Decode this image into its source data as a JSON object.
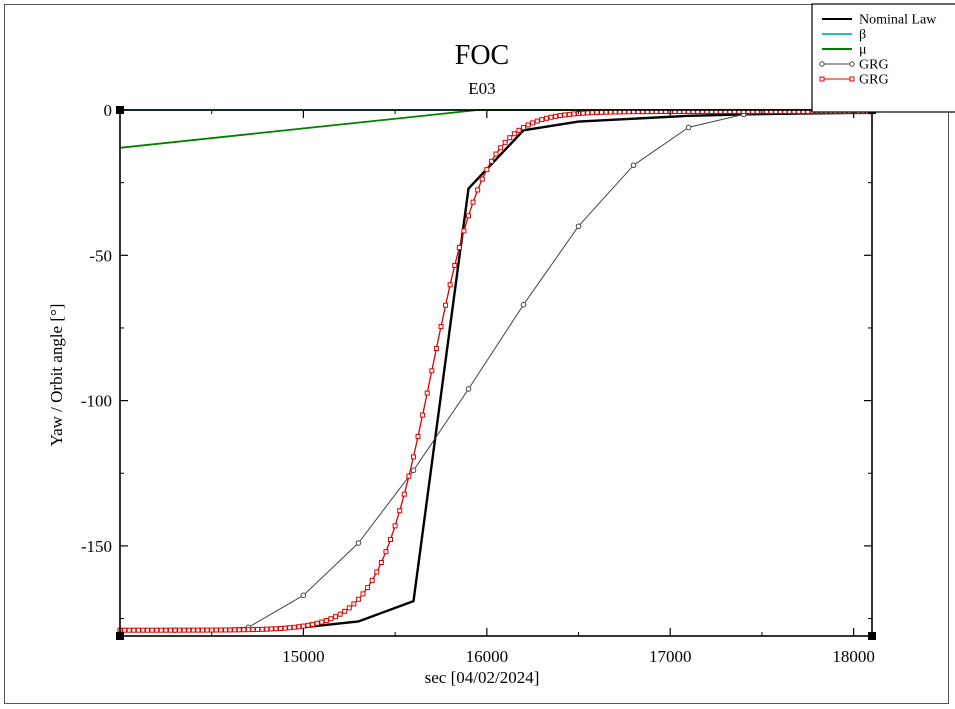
{
  "chart_data": {
    "type": "line",
    "title": "FOC",
    "subtitle": "E03",
    "xlabel": "sec [04/02/2024]",
    "ylabel": "Yaw / Orbit angle [°]",
    "xlim": [
      14000,
      18100
    ],
    "ylim": [
      -181,
      0
    ],
    "xticks": [
      15000,
      16000,
      17000,
      18000
    ],
    "yticks": [
      0,
      -50,
      -100,
      -150
    ],
    "grid": false,
    "legend_position": "top-right",
    "series": [
      {
        "name": "Nominal Law",
        "color": "#000000",
        "marker": "none",
        "x": [
          14000,
          14500,
          15000,
          15300,
          15600,
          15900,
          16200,
          16500,
          16800,
          17100,
          17400,
          17700,
          18000,
          18100
        ],
        "y": [
          -179,
          -179,
          -178,
          -176,
          -169,
          -27,
          -7,
          -4,
          -3,
          -2,
          -1.5,
          -1.2,
          -1,
          -1
        ]
      },
      {
        "name": "β",
        "color": "#20c0c0",
        "marker": "none",
        "x": [
          14000,
          18100
        ],
        "y": [
          0,
          0
        ]
      },
      {
        "name": "μ",
        "color": "#008000",
        "marker": "none",
        "x": [
          14000,
          15950,
          18100
        ],
        "y": [
          -13,
          0,
          0
        ]
      },
      {
        "name": "GRG",
        "color": "#444444",
        "marker": "circle",
        "x": [
          14000,
          14300,
          14700,
          15000,
          15300,
          15600,
          15900,
          16200,
          16500,
          16800,
          17100,
          17400,
          17700,
          18000,
          18100
        ],
        "y": [
          -179,
          -179,
          -178,
          -167,
          -149,
          -124,
          -96,
          -67,
          -40,
          -19,
          -6,
          -1.5,
          -0.8,
          -0.5,
          -0.5
        ]
      },
      {
        "name": "GRG",
        "color": "#dd0000",
        "marker": "square",
        "model": {
          "center": 15700,
          "scale": 290,
          "low": -179,
          "high": -0.5,
          "step": 25
        },
        "x_range": [
          14000,
          18100
        ]
      }
    ]
  }
}
